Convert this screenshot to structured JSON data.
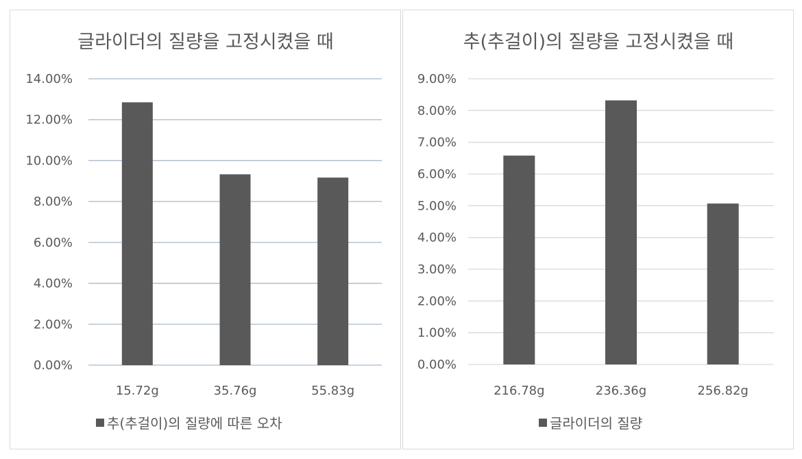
{
  "chart_data": [
    {
      "type": "bar",
      "title": "글라이더의 질량을 고정시켰을 때",
      "categories": [
        "15.72g",
        "35.76g",
        "55.83g"
      ],
      "series": [
        {
          "name": "추(추걸이)의 질량에 따른 오차",
          "values": [
            12.85,
            9.33,
            9.17
          ]
        }
      ],
      "ylim": [
        0,
        14
      ],
      "yticks": [
        "0.00%",
        "2.00%",
        "4.00%",
        "6.00%",
        "8.00%",
        "10.00%",
        "12.00%",
        "14.00%"
      ],
      "legend_position": "bottom",
      "grid": true,
      "colors": {
        "bar": "#595959",
        "grid": "#a9b9cc",
        "text": "#595959"
      }
    },
    {
      "type": "bar",
      "title": "추(추걸이)의 질량을 고정시켰을 때",
      "categories": [
        "216.78g",
        "236.36g",
        "256.82g"
      ],
      "series": [
        {
          "name": "글라이더의 질량",
          "values": [
            6.58,
            8.32,
            5.07
          ]
        }
      ],
      "ylim": [
        0,
        9
      ],
      "yticks": [
        "0.00%",
        "1.00%",
        "2.00%",
        "3.00%",
        "4.00%",
        "5.00%",
        "6.00%",
        "7.00%",
        "8.00%",
        "9.00%"
      ],
      "legend_position": "bottom",
      "grid": true,
      "colors": {
        "bar": "#595959",
        "grid": "#d9d9d9",
        "text": "#595959"
      }
    }
  ]
}
